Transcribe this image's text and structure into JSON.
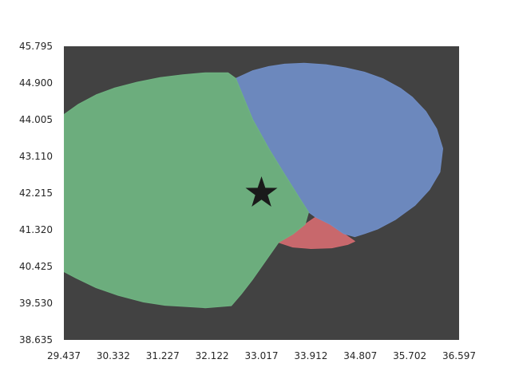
{
  "chart_data": {
    "type": "map",
    "title": "",
    "xlabel": "",
    "ylabel": "",
    "xlim": [
      29.437,
      36.597
    ],
    "ylim": [
      38.635,
      45.795
    ],
    "x_ticks": [
      "29.437",
      "30.332",
      "31.227",
      "32.122",
      "33.017",
      "33.912",
      "34.807",
      "35.702",
      "36.597"
    ],
    "y_ticks": [
      "38.635",
      "39.530",
      "40.425",
      "41.320",
      "42.215",
      "43.110",
      "44.005",
      "44.900",
      "45.795"
    ],
    "grid": false,
    "background_color": "#424242",
    "regions": [
      {
        "color": "#d06a6f",
        "points": [
          [
            33.327,
            41.013
          ],
          [
            33.585,
            40.9
          ],
          [
            33.912,
            40.862
          ],
          [
            34.29,
            40.88
          ],
          [
            34.587,
            40.965
          ],
          [
            34.707,
            41.04
          ],
          [
            34.51,
            41.225
          ],
          [
            34.26,
            41.455
          ],
          [
            33.996,
            41.63
          ],
          [
            33.807,
            41.455
          ],
          [
            33.585,
            41.213
          ],
          [
            33.327,
            41.013
          ]
        ]
      },
      {
        "color": "#6f8cc4",
        "points": [
          [
            32.551,
            45.01
          ],
          [
            32.86,
            45.2
          ],
          [
            33.15,
            45.3
          ],
          [
            33.435,
            45.36
          ],
          [
            33.79,
            45.38
          ],
          [
            34.185,
            45.345
          ],
          [
            34.54,
            45.27
          ],
          [
            34.88,
            45.165
          ],
          [
            35.225,
            45.0
          ],
          [
            35.535,
            44.77
          ],
          [
            35.745,
            44.56
          ],
          [
            35.995,
            44.205
          ],
          [
            36.19,
            43.78
          ],
          [
            36.3,
            43.3
          ],
          [
            36.25,
            42.73
          ],
          [
            36.06,
            42.3
          ],
          [
            35.8,
            41.92
          ],
          [
            35.45,
            41.575
          ],
          [
            35.12,
            41.34
          ],
          [
            34.885,
            41.227
          ],
          [
            34.707,
            41.15
          ],
          [
            34.51,
            41.225
          ],
          [
            34.26,
            41.455
          ],
          [
            33.996,
            41.63
          ],
          [
            33.87,
            41.75
          ],
          [
            33.405,
            42.74
          ],
          [
            33.15,
            43.3
          ],
          [
            32.86,
            44.005
          ],
          [
            32.551,
            45.01
          ]
        ]
      },
      {
        "color": "#6fb381",
        "points": [
          [
            29.437,
            44.13
          ],
          [
            29.7,
            44.38
          ],
          [
            30.02,
            44.61
          ],
          [
            30.36,
            44.78
          ],
          [
            30.765,
            44.92
          ],
          [
            31.18,
            45.03
          ],
          [
            31.59,
            45.1
          ],
          [
            32.0,
            45.15
          ],
          [
            32.41,
            45.15
          ],
          [
            32.551,
            45.01
          ],
          [
            32.86,
            44.005
          ],
          [
            33.15,
            43.3
          ],
          [
            33.405,
            42.74
          ],
          [
            33.75,
            42.0
          ],
          [
            33.87,
            41.75
          ],
          [
            33.807,
            41.455
          ],
          [
            33.585,
            41.213
          ],
          [
            33.327,
            41.013
          ],
          [
            33.017,
            40.42
          ],
          [
            32.85,
            40.1
          ],
          [
            32.65,
            39.75
          ],
          [
            32.47,
            39.47
          ],
          [
            32.0,
            39.42
          ],
          [
            31.64,
            39.45
          ],
          [
            31.27,
            39.48
          ],
          [
            30.88,
            39.56
          ],
          [
            30.42,
            39.72
          ],
          [
            30.02,
            39.91
          ],
          [
            29.66,
            40.14
          ],
          [
            29.437,
            40.3
          ],
          [
            29.437,
            44.13
          ]
        ]
      }
    ],
    "markers": [
      {
        "shape": "star",
        "x": 33.017,
        "y": 42.215,
        "color": "#1a1a1a"
      }
    ]
  }
}
